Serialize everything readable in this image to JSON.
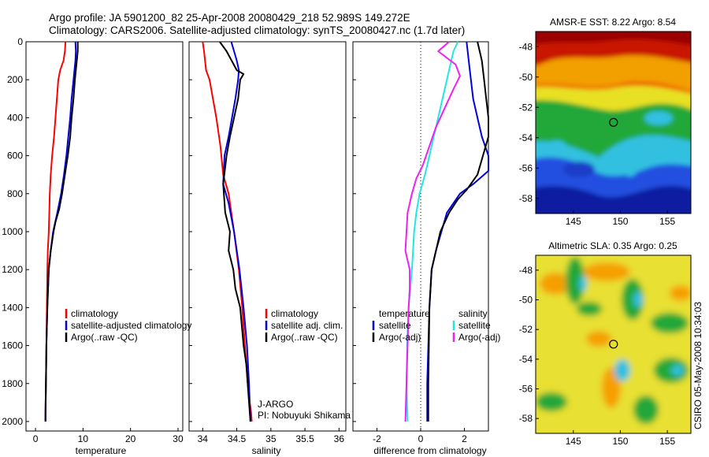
{
  "header": {
    "line1": "Argo profile: JA 5901200_82 25-Apr-2008 20080429_218 52.989S 149.272E",
    "line2": "Climatology: CARS2006. Satellite-adjusted climatology: synTS_20080427.nc (1.7d later)"
  },
  "side_label": "CSIRO 05-May-2008 10:34:03",
  "colors": {
    "climatology": "#ff0000",
    "satellite": "#0000dd",
    "argo": "#000000",
    "salinity_satellite": "#22e6e6",
    "salinity_argo": "#ee22ee"
  },
  "chart_data": [
    {
      "type": "line",
      "xlabel": "temperature",
      "xlim": [
        -2,
        31
      ],
      "ylim": [
        2050,
        0
      ],
      "xticks": [
        0,
        10,
        20,
        30
      ],
      "yticks": [
        0,
        200,
        400,
        600,
        800,
        1000,
        1200,
        1400,
        1600,
        1800,
        2000
      ],
      "legend": {
        "position": "bottom-right",
        "items": [
          {
            "label": "climatology",
            "color": "#ff0000"
          },
          {
            "label": "satellite-adjusted climatology",
            "color": "#0000dd"
          },
          {
            "label": "Argo(..raw -QC)",
            "color": "#000000"
          }
        ]
      },
      "series": [
        {
          "key": "climatology",
          "color": "#ff0000",
          "x": [
            6.3,
            6.2,
            5.9,
            5.2,
            4.8,
            4.5,
            4.2,
            3.9,
            3.5,
            3.2,
            3.0,
            2.8,
            2.6,
            2.5,
            2.4,
            2.3,
            2.2,
            2.1,
            2.1
          ],
          "y": [
            0,
            50,
            100,
            150,
            200,
            300,
            400,
            500,
            600,
            700,
            800,
            1000,
            1100,
            1200,
            1400,
            1600,
            1800,
            1950,
            2000
          ]
        },
        {
          "key": "satellite",
          "color": "#0000dd",
          "x": [
            8.4,
            8.5,
            8.4,
            8.0,
            7.6,
            7.3,
            6.9,
            6.5,
            6.0,
            5.4,
            4.6,
            3.7,
            3.2,
            2.8,
            2.5,
            2.3,
            2.2,
            2.1,
            2.1
          ],
          "y": [
            0,
            50,
            100,
            200,
            300,
            400,
            500,
            600,
            700,
            800,
            900,
            1000,
            1100,
            1200,
            1400,
            1600,
            1800,
            1950,
            2000
          ]
        },
        {
          "key": "argo",
          "color": "#000000",
          "x": [
            8.9,
            8.9,
            8.7,
            8.3,
            8.0,
            7.6,
            7.3,
            6.8,
            6.2,
            5.6,
            5.0,
            4.2,
            3.8,
            3.2,
            2.8,
            2.5,
            2.3,
            2.2,
            2.1
          ],
          "y": [
            0,
            50,
            100,
            200,
            300,
            400,
            500,
            600,
            700,
            800,
            880,
            950,
            1000,
            1100,
            1200,
            1400,
            1600,
            1800,
            2000
          ]
        }
      ]
    },
    {
      "type": "line",
      "xlabel": "salinity",
      "xlim": [
        33.8,
        36.1
      ],
      "ylim": [
        2050,
        0
      ],
      "xticks": [
        34,
        34.5,
        35,
        35.5,
        36
      ],
      "legend": {
        "position": "bottom-right",
        "items": [
          {
            "label": "climatology",
            "color": "#ff0000"
          },
          {
            "label": "satellite adj. clim.",
            "color": "#0000dd"
          },
          {
            "label": "Argo(..raw -QC)",
            "color": "#000000"
          }
        ]
      },
      "annotations": [
        "J-ARGO",
        "PI: Nobuyuki Shikama"
      ],
      "series": [
        {
          "key": "climatology",
          "color": "#ff0000",
          "x": [
            34.0,
            34.02,
            34.05,
            34.1,
            34.15,
            34.2,
            34.26,
            34.3,
            34.38,
            34.46,
            34.53,
            34.58,
            34.62,
            34.66,
            34.69,
            34.71,
            34.72
          ],
          "y": [
            0,
            50,
            150,
            200,
            300,
            400,
            550,
            700,
            800,
            1000,
            1200,
            1400,
            1600,
            1800,
            1900,
            1950,
            2000
          ]
        },
        {
          "key": "satellite",
          "color": "#0000dd",
          "x": [
            34.42,
            34.46,
            34.5,
            34.53,
            34.52,
            34.48,
            34.43,
            34.38,
            34.32,
            34.3,
            34.38,
            34.46,
            34.54,
            34.6,
            34.65,
            34.68,
            34.7
          ],
          "y": [
            0,
            50,
            100,
            150,
            200,
            300,
            400,
            500,
            600,
            750,
            850,
            1000,
            1200,
            1400,
            1600,
            1800,
            2000
          ]
        },
        {
          "key": "argo",
          "color": "#000000",
          "x": [
            34.25,
            34.35,
            34.5,
            34.6,
            34.55,
            34.52,
            34.46,
            34.4,
            34.35,
            34.3,
            34.33,
            34.4,
            34.38,
            34.45,
            34.48,
            34.55,
            34.6,
            34.64,
            34.68,
            34.7
          ],
          "y": [
            0,
            50,
            150,
            170,
            200,
            300,
            400,
            500,
            600,
            750,
            900,
            1000,
            1100,
            1200,
            1300,
            1400,
            1600,
            1700,
            1900,
            2000
          ]
        }
      ]
    },
    {
      "type": "line",
      "xlabel": "difference from climatology",
      "xlim": [
        -3.1,
        3.1
      ],
      "ylim": [
        2050,
        0
      ],
      "xticks": [
        -2,
        0,
        2
      ],
      "zero_line": true,
      "legend": {
        "position": "bottom",
        "groups": [
          {
            "title": "temperature",
            "items": [
              {
                "label": "satellite",
                "color": "#0000dd"
              },
              {
                "label": "Argo(-adj)",
                "color": "#000000"
              }
            ]
          },
          {
            "title": "salinity",
            "items": [
              {
                "label": "satellite",
                "color": "#22e6e6"
              },
              {
                "label": "Argo(-adj)",
                "color": "#ee22ee"
              }
            ]
          }
        ]
      },
      "series": [
        {
          "key": "temperature-satellite",
          "color": "#0000dd",
          "x": [
            2.1,
            2.2,
            2.3,
            2.4,
            2.6,
            2.8,
            3.1,
            3.1,
            2.4,
            1.8,
            1.2,
            0.7,
            0.5,
            0.4,
            0.35,
            0.3,
            0.3
          ],
          "y": [
            0,
            100,
            200,
            300,
            400,
            500,
            600,
            680,
            750,
            800,
            900,
            1100,
            1200,
            1400,
            1600,
            1800,
            2000
          ]
        },
        {
          "key": "temperature-argo",
          "color": "#000000",
          "x": [
            2.6,
            2.7,
            2.8,
            2.9,
            3.0,
            3.1,
            3.1,
            2.6,
            2.1,
            1.7,
            1.3,
            0.9,
            0.5,
            0.4,
            0.35,
            0.35
          ],
          "y": [
            0,
            50,
            100,
            200,
            300,
            400,
            500,
            700,
            780,
            830,
            900,
            1000,
            1200,
            1400,
            1800,
            2000
          ]
        },
        {
          "key": "salinity-satellite",
          "color": "#22e6e6",
          "x": [
            1.7,
            1.5,
            1.4,
            1.2,
            1.0,
            0.8,
            0.6,
            0.4,
            0.2,
            -0.05,
            -0.2,
            -0.3,
            -0.4,
            -0.55,
            -0.62,
            -0.65,
            -0.6
          ],
          "y": [
            0,
            50,
            100,
            200,
            300,
            400,
            500,
            600,
            700,
            800,
            900,
            1000,
            1200,
            1400,
            1600,
            1800,
            2000
          ]
        },
        {
          "key": "salinity-argo",
          "color": "#ee22ee",
          "x": [
            1.3,
            0.8,
            1.6,
            1.8,
            1.5,
            1.1,
            0.7,
            0.4,
            0.1,
            -0.2,
            -0.4,
            -0.6,
            -0.7,
            -0.5,
            -0.5,
            -0.55,
            -0.6,
            -0.65,
            -0.7
          ],
          "y": [
            0,
            50,
            120,
            180,
            250,
            350,
            450,
            550,
            650,
            720,
            800,
            900,
            1100,
            1200,
            1300,
            1400,
            1600,
            1800,
            2000
          ]
        }
      ]
    },
    {
      "type": "heatmap",
      "title": "AMSR-E SST: 8.22 Argo: 8.54",
      "xlim": [
        141,
        157.5
      ],
      "ylim": [
        -59,
        -47
      ],
      "xticks": [
        145,
        150,
        155
      ],
      "yticks": [
        -48,
        -50,
        -52,
        -54,
        -56,
        -58
      ],
      "marker": {
        "lon": 149.272,
        "lat": -52.989
      }
    },
    {
      "type": "heatmap",
      "title": "Altimetric SLA: 0.35 Argo: 0.25",
      "xlim": [
        141,
        157.5
      ],
      "ylim": [
        -59,
        -47
      ],
      "xticks": [
        145,
        150,
        155
      ],
      "yticks": [
        -48,
        -50,
        -52,
        -54,
        -56,
        -58
      ],
      "marker": {
        "lon": 149.272,
        "lat": -52.989
      }
    }
  ]
}
